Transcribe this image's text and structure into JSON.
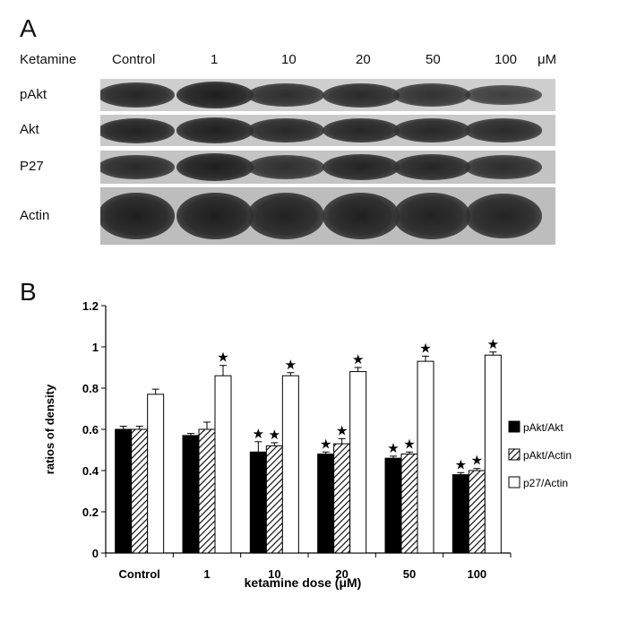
{
  "panel_a": {
    "letter": "A",
    "treatment_label": "Ketamine",
    "lanes": [
      "Control",
      "1",
      "10",
      "20",
      "50",
      "100"
    ],
    "unit": "μM",
    "rows": [
      {
        "label": "pAkt",
        "intensity": [
          0.85,
          0.95,
          0.75,
          0.8,
          0.7,
          0.55
        ]
      },
      {
        "label": "Akt",
        "intensity": [
          0.9,
          0.92,
          0.82,
          0.85,
          0.83,
          0.8
        ]
      },
      {
        "label": "P27",
        "intensity": [
          0.8,
          0.95,
          0.72,
          0.88,
          0.85,
          0.75
        ]
      },
      {
        "label": "Actin",
        "intensity": [
          0.95,
          0.95,
          0.9,
          0.92,
          0.9,
          0.88
        ]
      }
    ]
  },
  "panel_b": {
    "letter": "B"
  },
  "chart_data": {
    "type": "bar",
    "categories": [
      "Control",
      "1",
      "10",
      "20",
      "50",
      "100"
    ],
    "xlabel": "ketamine dose (μM)",
    "ylabel": "ratios of density",
    "ylim": [
      0,
      1.2
    ],
    "yticks": [
      "0",
      "0.2",
      "0.4",
      "0.6",
      "0.8",
      "1",
      "1.2"
    ],
    "legend_position": "right",
    "series": [
      {
        "name": "pAkt/Akt",
        "fill": "solid-black",
        "values": [
          0.6,
          0.57,
          0.49,
          0.48,
          0.46,
          0.38
        ],
        "errors": [
          0.015,
          0.01,
          0.05,
          0.01,
          0.01,
          0.01
        ],
        "significant": [
          false,
          false,
          true,
          true,
          true,
          true
        ]
      },
      {
        "name": "pAkt/Actin",
        "fill": "hatched",
        "values": [
          0.6,
          0.6,
          0.52,
          0.53,
          0.48,
          0.4
        ],
        "errors": [
          0.015,
          0.035,
          0.015,
          0.025,
          0.01,
          0.01
        ],
        "significant": [
          false,
          false,
          true,
          true,
          true,
          true
        ]
      },
      {
        "name": "p27/Actin",
        "fill": "white",
        "values": [
          0.77,
          0.86,
          0.86,
          0.88,
          0.93,
          0.96
        ],
        "errors": [
          0.025,
          0.05,
          0.015,
          0.02,
          0.025,
          0.015
        ],
        "significant": [
          false,
          true,
          true,
          true,
          true,
          true
        ]
      }
    ],
    "significance_marker": "★",
    "colors": {
      "axis": "#111111",
      "bar_dark": "#000000",
      "bar_light": "#ffffff"
    }
  }
}
